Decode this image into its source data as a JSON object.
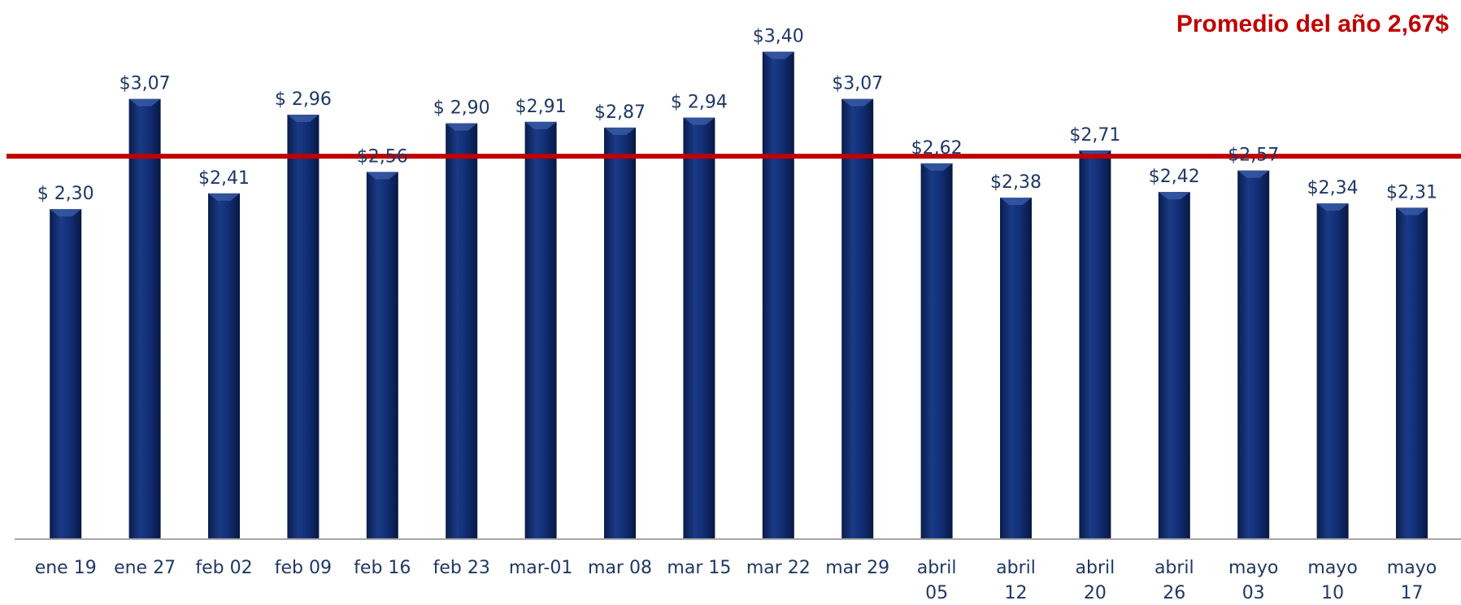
{
  "chart_data": {
    "type": "bar",
    "title": "",
    "xlabel": "",
    "ylabel": "",
    "ylim": [
      0,
      3.5
    ],
    "grid": false,
    "categories": [
      [
        "ene 19"
      ],
      [
        "ene 27"
      ],
      [
        "feb 02"
      ],
      [
        "feb 09"
      ],
      [
        "feb 16"
      ],
      [
        "feb 23"
      ],
      [
        "mar-01"
      ],
      [
        "mar 08"
      ],
      [
        "mar 15"
      ],
      [
        "mar 22"
      ],
      [
        "mar 29"
      ],
      [
        "abril",
        "05"
      ],
      [
        "abril",
        "12"
      ],
      [
        "abril",
        "20"
      ],
      [
        "abril",
        "26"
      ],
      [
        "mayo",
        "03"
      ],
      [
        "mayo",
        "10"
      ],
      [
        "mayo",
        "17"
      ]
    ],
    "values": [
      2.3,
      3.07,
      2.41,
      2.96,
      2.56,
      2.9,
      2.91,
      2.87,
      2.94,
      3.4,
      3.07,
      2.62,
      2.38,
      2.71,
      2.42,
      2.57,
      2.34,
      2.31
    ],
    "data_labels": [
      "$ 2,30",
      "$3,07",
      "$2,41",
      "$ 2,96",
      "$2,56",
      "$ 2,90",
      "$2,91",
      "$2,87",
      "$ 2,94",
      "$3,40",
      "$3,07",
      "$2,62",
      "$2,38",
      "$2,71",
      "$2,42",
      "$2,57",
      "$2,34",
      "$2,31"
    ],
    "reference_line": {
      "value": 2.67,
      "label": "Promedio del año 2,67$",
      "color": "#C00000"
    },
    "colors": {
      "bar": "#0F2A6B",
      "bar_light": "#3A5BA6",
      "bar_dark": "#0A1C4C",
      "label_text": "#1F3864",
      "axis": "#A6A6A6",
      "tick_text": "#1F3864"
    }
  }
}
